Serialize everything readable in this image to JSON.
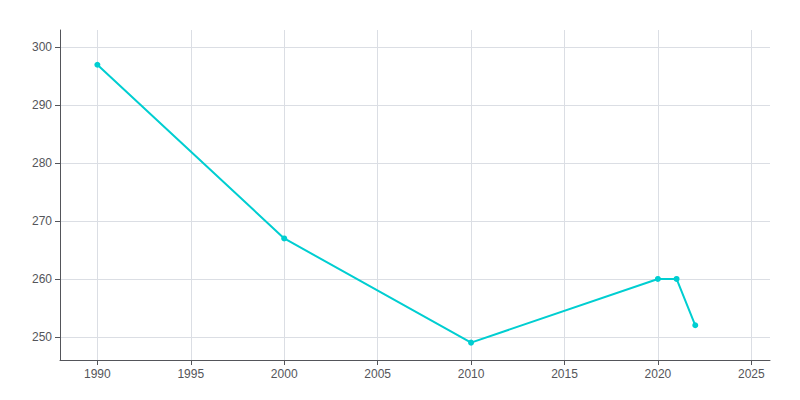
{
  "chart_data": {
    "type": "line",
    "x": [
      1990,
      2000,
      2010,
      2020,
      2021,
      2022
    ],
    "values": [
      297,
      267,
      249,
      260,
      260,
      252
    ],
    "color": "#00CED1",
    "marker": "circle",
    "xlim": [
      1988,
      2026
    ],
    "ylim": [
      246,
      303
    ],
    "xticks": [
      1990,
      1995,
      2000,
      2005,
      2010,
      2015,
      2020,
      2025
    ],
    "yticks": [
      250,
      260,
      270,
      280,
      290,
      300
    ],
    "grid": true
  }
}
